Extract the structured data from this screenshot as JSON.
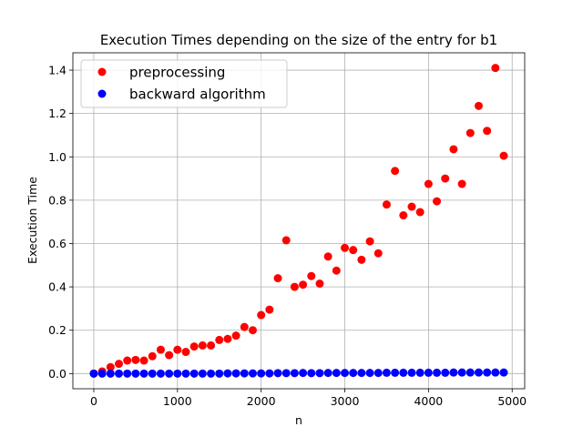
{
  "chart_data": {
    "type": "scatter",
    "title": "Execution Times depending on the size of the entry for b1",
    "xlabel": "n",
    "ylabel": "Execution Time",
    "xlim": [
      -250,
      5150
    ],
    "ylim": [
      -0.07,
      1.48
    ],
    "xticks": [
      0,
      1000,
      2000,
      3000,
      4000,
      5000
    ],
    "xtick_labels": [
      "0",
      "1000",
      "2000",
      "3000",
      "4000",
      "5000"
    ],
    "yticks": [
      0.0,
      0.2,
      0.4,
      0.6,
      0.8,
      1.0,
      1.2,
      1.4
    ],
    "ytick_labels": [
      "0.0",
      "0.2",
      "0.4",
      "0.6",
      "0.8",
      "1.0",
      "1.2",
      "1.4"
    ],
    "grid": true,
    "legend_position": "top-left",
    "series": [
      {
        "name": "preprocessing",
        "color": "#ff0000",
        "x": [
          0,
          100,
          200,
          300,
          400,
          500,
          600,
          700,
          800,
          900,
          1000,
          1100,
          1200,
          1300,
          1400,
          1500,
          1600,
          1700,
          1800,
          1900,
          2000,
          2100,
          2200,
          2300,
          2400,
          2500,
          2600,
          2700,
          2800,
          2900,
          3000,
          3100,
          3200,
          3300,
          3400,
          3500,
          3600,
          3700,
          3800,
          3900,
          4000,
          4100,
          4200,
          4300,
          4400,
          4500,
          4600,
          4700,
          4800,
          4900
        ],
        "y": [
          0.0,
          0.01,
          0.03,
          0.045,
          0.06,
          0.063,
          0.06,
          0.08,
          0.11,
          0.085,
          0.11,
          0.1,
          0.125,
          0.13,
          0.13,
          0.155,
          0.16,
          0.175,
          0.215,
          0.2,
          0.27,
          0.295,
          0.44,
          0.615,
          0.4,
          0.41,
          0.45,
          0.415,
          0.54,
          0.475,
          0.58,
          0.57,
          0.525,
          0.61,
          0.555,
          0.78,
          0.935,
          0.73,
          0.77,
          0.745,
          0.875,
          0.795,
          0.9,
          1.035,
          0.875,
          1.11,
          1.235,
          1.12,
          1.41,
          1.005
        ]
      },
      {
        "name": "backward algorithm",
        "color": "#0000ff",
        "x": [
          0,
          100,
          200,
          300,
          400,
          500,
          600,
          700,
          800,
          900,
          1000,
          1100,
          1200,
          1300,
          1400,
          1500,
          1600,
          1700,
          1800,
          1900,
          2000,
          2100,
          2200,
          2300,
          2400,
          2500,
          2600,
          2700,
          2800,
          2900,
          3000,
          3100,
          3200,
          3300,
          3400,
          3500,
          3600,
          3700,
          3800,
          3900,
          4000,
          4100,
          4200,
          4300,
          4400,
          4500,
          4600,
          4700,
          4800,
          4900
        ],
        "y": [
          0.0,
          0.0,
          0.0,
          0.0,
          0.0,
          0.0,
          0.0,
          0.0,
          0.0,
          0.0,
          0.0,
          0.0,
          0.0,
          0.0,
          0.0,
          0.0,
          0.001,
          0.001,
          0.001,
          0.001,
          0.001,
          0.001,
          0.002,
          0.002,
          0.002,
          0.003,
          0.002,
          0.002,
          0.003,
          0.003,
          0.003,
          0.003,
          0.003,
          0.003,
          0.003,
          0.004,
          0.004,
          0.004,
          0.004,
          0.004,
          0.004,
          0.004,
          0.004,
          0.005,
          0.005,
          0.005,
          0.005,
          0.005,
          0.005,
          0.005
        ]
      }
    ]
  }
}
